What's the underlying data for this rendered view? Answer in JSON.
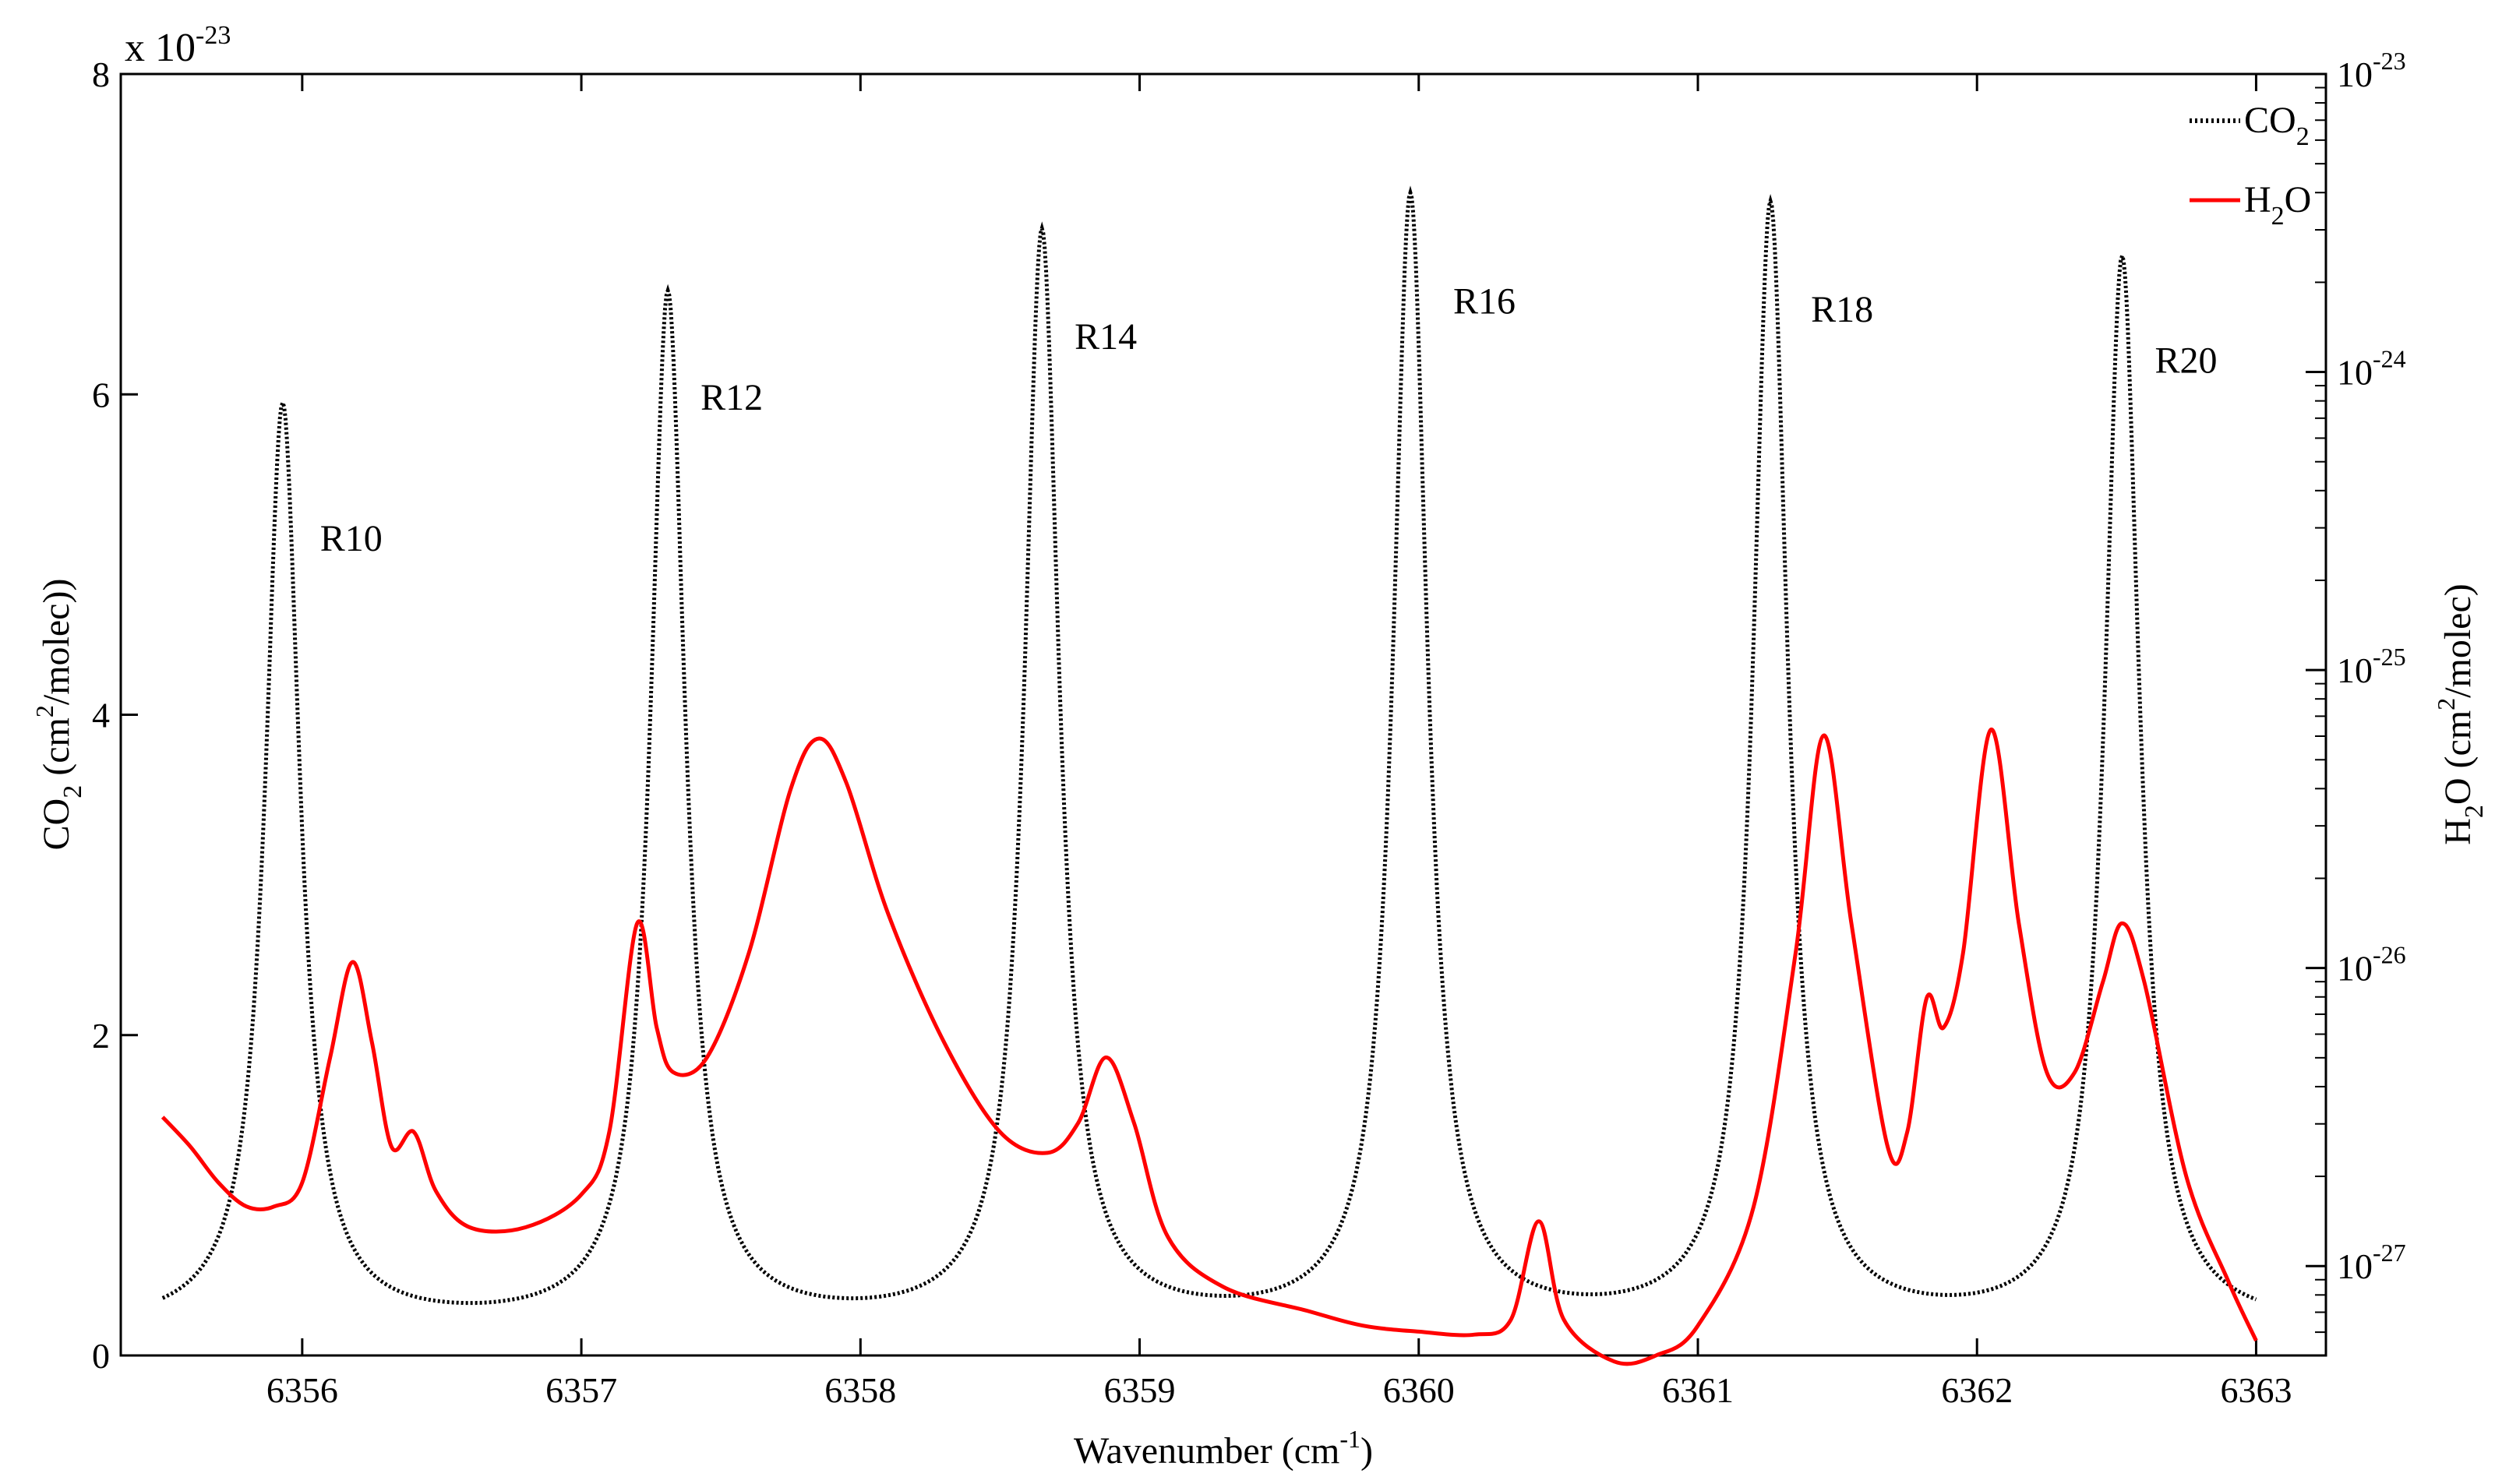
{
  "chart_data": {
    "type": "line",
    "title": "",
    "xlabel": "Wavenumber (cm",
    "xlabel_sup": "-1",
    "xlabel_end": ")",
    "xlim": [
      6355.35,
      6363.25
    ],
    "xticks": [
      6356,
      6357,
      6358,
      6359,
      6360,
      6361,
      6362,
      6363
    ],
    "ylabel_left": {
      "pre": "CO",
      "sub": "2",
      "mid": " (cm",
      "sup": "2",
      "post": "/molec))"
    },
    "ylim_left": [
      0,
      8
    ],
    "yticks_left": [
      0,
      2,
      4,
      6,
      8
    ],
    "y_left_multiplier": {
      "base": "x 10",
      "exp": "-23"
    },
    "ylabel_right": {
      "pre": "H",
      "sub": "2",
      "mid": "O (cm",
      "sup": "2",
      "post": "/molec)"
    },
    "ylim_right_log10": [
      -27.3,
      -23
    ],
    "yticks_right": [
      {
        "exp": -27,
        "base": "10",
        "sup": "-27"
      },
      {
        "exp": -26,
        "base": "10",
        "sup": "-26"
      },
      {
        "exp": -25,
        "base": "10",
        "sup": "-25"
      },
      {
        "exp": -24,
        "base": "10",
        "sup": "-24"
      },
      {
        "exp": -23,
        "base": "10",
        "sup": "-23"
      }
    ],
    "legend": [
      {
        "name": "CO",
        "sub": "2",
        "color": "#000000",
        "style": "dotted"
      },
      {
        "name": "H",
        "sub": "2",
        "post": "O",
        "color": "#ff0000",
        "style": "solid"
      }
    ],
    "legend_position": "top-right",
    "co2_peaks": [
      {
        "label": "R10",
        "x": 6355.93,
        "y": 5.92
      },
      {
        "label": "R12",
        "x": 6357.31,
        "y": 6.6
      },
      {
        "label": "R14",
        "x": 6358.65,
        "y": 6.98
      },
      {
        "label": "R16",
        "x": 6359.97,
        "y": 7.2
      },
      {
        "label": "R18",
        "x": 6361.26,
        "y": 7.15
      },
      {
        "label": "R20",
        "x": 6362.52,
        "y": 6.83
      }
    ],
    "co2_baseline": 0.17,
    "series": [
      {
        "name": "CO2",
        "axis": "left",
        "color": "#000000",
        "points": [
          [
            6355.5,
            0.23
          ],
          [
            6355.6,
            0.35
          ],
          [
            6355.7,
            0.75
          ],
          [
            6355.8,
            1.8
          ],
          [
            6355.85,
            2.9
          ],
          [
            6355.93,
            5.92
          ],
          [
            6356.0,
            4.2
          ],
          [
            6356.1,
            1.6
          ],
          [
            6356.2,
            0.75
          ],
          [
            6356.3,
            0.4
          ],
          [
            6356.5,
            0.22
          ],
          [
            6356.7,
            0.19
          ],
          [
            6356.9,
            0.22
          ],
          [
            6357.0,
            0.35
          ],
          [
            6357.1,
            0.7
          ],
          [
            6357.2,
            2.1
          ],
          [
            6357.26,
            4.5
          ],
          [
            6357.31,
            6.6
          ],
          [
            6357.36,
            4.8
          ],
          [
            6357.45,
            2.1
          ],
          [
            6357.6,
            0.75
          ],
          [
            6357.8,
            0.28
          ],
          [
            6358.0,
            0.21
          ],
          [
            6358.2,
            0.22
          ],
          [
            6358.35,
            0.4
          ],
          [
            6358.45,
            0.9
          ],
          [
            6358.55,
            2.6
          ],
          [
            6358.65,
            6.98
          ],
          [
            6358.73,
            4.2
          ],
          [
            6358.85,
            1.4
          ],
          [
            6359.0,
            0.55
          ],
          [
            6359.2,
            0.25
          ],
          [
            6359.4,
            0.24
          ],
          [
            6359.6,
            0.4
          ],
          [
            6359.75,
            0.9
          ],
          [
            6359.87,
            2.6
          ],
          [
            6359.97,
            7.2
          ],
          [
            6360.05,
            4.3
          ],
          [
            6360.2,
            1.3
          ],
          [
            6360.4,
            0.4
          ],
          [
            6360.6,
            0.22
          ],
          [
            6360.8,
            0.25
          ],
          [
            6360.95,
            0.5
          ],
          [
            6361.1,
            1.4
          ],
          [
            6361.2,
            4.5
          ],
          [
            6361.26,
            7.15
          ],
          [
            6361.33,
            4.5
          ],
          [
            6361.45,
            1.5
          ],
          [
            6361.6,
            0.5
          ],
          [
            6361.8,
            0.22
          ],
          [
            6362.0,
            0.24
          ],
          [
            6362.15,
            0.45
          ],
          [
            6362.3,
            1.2
          ],
          [
            6362.42,
            3.9
          ],
          [
            6362.52,
            6.83
          ],
          [
            6362.6,
            4.6
          ],
          [
            6362.7,
            2.0
          ],
          [
            6362.85,
            0.6
          ],
          [
            6363.0,
            0.14
          ]
        ]
      },
      {
        "name": "H2O",
        "axis": "right",
        "color": "#ff0000",
        "points": [
          [
            6355.5,
            -26.5
          ],
          [
            6355.6,
            -26.6
          ],
          [
            6355.7,
            -26.72
          ],
          [
            6355.8,
            -26.8
          ],
          [
            6355.9,
            -26.8
          ],
          [
            6356.0,
            -26.72
          ],
          [
            6356.1,
            -26.3
          ],
          [
            6356.18,
            -25.98
          ],
          [
            6356.25,
            -26.25
          ],
          [
            6356.32,
            -26.6
          ],
          [
            6356.4,
            -26.55
          ],
          [
            6356.48,
            -26.75
          ],
          [
            6356.6,
            -26.87
          ],
          [
            6356.8,
            -26.87
          ],
          [
            6357.0,
            -26.76
          ],
          [
            6357.1,
            -26.55
          ],
          [
            6357.2,
            -25.85
          ],
          [
            6357.27,
            -26.2
          ],
          [
            6357.33,
            -26.35
          ],
          [
            6357.45,
            -26.3
          ],
          [
            6357.6,
            -25.95
          ],
          [
            6357.75,
            -25.4
          ],
          [
            6357.85,
            -25.23
          ],
          [
            6357.95,
            -25.38
          ],
          [
            6358.1,
            -25.82
          ],
          [
            6358.3,
            -26.25
          ],
          [
            6358.5,
            -26.55
          ],
          [
            6358.67,
            -26.62
          ],
          [
            6358.78,
            -26.52
          ],
          [
            6358.88,
            -26.3
          ],
          [
            6358.98,
            -26.52
          ],
          [
            6359.1,
            -26.9
          ],
          [
            6359.3,
            -27.07
          ],
          [
            6359.6,
            -27.15
          ],
          [
            6359.8,
            -27.2
          ],
          [
            6360.0,
            -27.22
          ],
          [
            6360.2,
            -27.23
          ],
          [
            6360.33,
            -27.18
          ],
          [
            6360.43,
            -26.85
          ],
          [
            6360.52,
            -27.18
          ],
          [
            6360.7,
            -27.32
          ],
          [
            6360.85,
            -27.3
          ],
          [
            6361.0,
            -27.2
          ],
          [
            6361.2,
            -26.8
          ],
          [
            6361.35,
            -25.95
          ],
          [
            6361.45,
            -25.22
          ],
          [
            6361.55,
            -25.85
          ],
          [
            6361.68,
            -26.6
          ],
          [
            6361.75,
            -26.55
          ],
          [
            6361.82,
            -26.1
          ],
          [
            6361.88,
            -26.2
          ],
          [
            6361.95,
            -25.95
          ],
          [
            6362.05,
            -25.2
          ],
          [
            6362.15,
            -25.85
          ],
          [
            6362.25,
            -26.35
          ],
          [
            6362.35,
            -26.35
          ],
          [
            6362.45,
            -26.05
          ],
          [
            6362.52,
            -25.85
          ],
          [
            6362.6,
            -26.05
          ],
          [
            6362.75,
            -26.7
          ],
          [
            6362.9,
            -27.05
          ],
          [
            6363.0,
            -27.25
          ]
        ]
      }
    ]
  }
}
